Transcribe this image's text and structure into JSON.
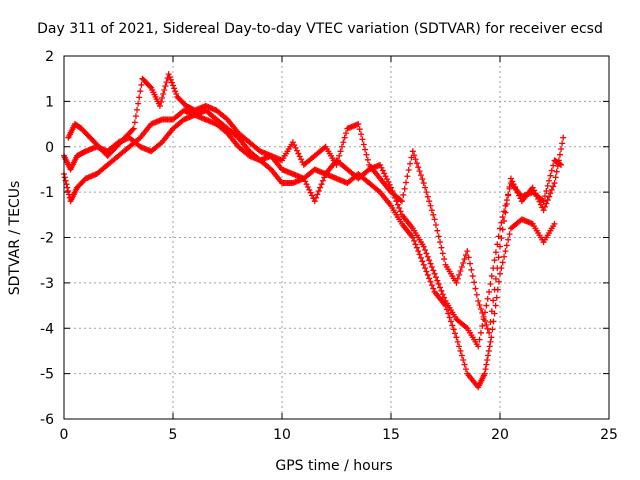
{
  "chart_data": {
    "type": "scatter",
    "title": "Day 311 of 2021, Sidereal Day-to-day VTEC variation (SDTVAR) for receiver ecsd",
    "xlabel": "GPS time / hours",
    "ylabel": "SDTVAR / TECUs",
    "xlim": [
      0,
      25
    ],
    "ylim": [
      -6,
      2
    ],
    "xticks": [
      "0",
      "5",
      "10",
      "15",
      "20",
      "25"
    ],
    "yticks": [
      "-6",
      "-5",
      "-4",
      "-3",
      "-2",
      "-1",
      "0",
      "1",
      "2"
    ],
    "grid": true,
    "marker": "+",
    "color": "#ff0000",
    "series": [
      {
        "x": [
          0.0,
          0.3,
          0.6,
          1.0,
          1.5,
          2.0,
          2.5,
          3.0,
          3.5,
          4.0,
          4.5,
          5.0,
          5.5,
          6.0,
          6.5,
          7.0,
          7.5,
          8.0,
          8.5,
          9.0,
          9.5,
          10.0,
          10.5,
          11.0,
          11.5,
          12.0,
          12.5,
          13.0,
          13.5,
          14.0,
          14.5,
          15.0,
          15.5,
          16.0,
          16.5,
          17.0,
          17.5,
          18.0,
          18.5,
          19.0,
          19.3,
          19.6,
          20.0,
          20.5,
          21.0,
          21.5,
          22.0,
          22.5
        ],
        "y": [
          -0.6,
          -1.2,
          -0.9,
          -0.7,
          -0.6,
          -0.4,
          -0.2,
          0.0,
          0.2,
          0.5,
          0.6,
          0.6,
          0.8,
          0.7,
          0.6,
          0.5,
          0.3,
          0.0,
          -0.2,
          -0.3,
          -0.5,
          -0.8,
          -0.8,
          -0.7,
          -0.5,
          -0.6,
          -0.7,
          -0.8,
          -0.6,
          -0.8,
          -1.0,
          -1.3,
          -1.7,
          -2.0,
          -2.6,
          -3.2,
          -3.5,
          -4.2,
          -5.0,
          -5.3,
          -5.0,
          -4.2,
          -2.8,
          -1.8,
          -1.6,
          -1.7,
          -2.1,
          -1.7
        ]
      },
      {
        "x": [
          0.0,
          0.3,
          0.6,
          1.0,
          1.5,
          2.0,
          2.5,
          3.0,
          3.5,
          4.0,
          4.5,
          5.0,
          5.5,
          6.0,
          6.5,
          7.0,
          7.5,
          8.0,
          8.5,
          9.0,
          9.5,
          10.0,
          10.5,
          11.0,
          11.5,
          12.0,
          12.5,
          13.0,
          13.5,
          14.0,
          14.5,
          15.0,
          15.5,
          16.0,
          16.5,
          17.0,
          17.5,
          18.0,
          18.5,
          19.0,
          19.5,
          20.0,
          20.5,
          21.0,
          21.5,
          22.0,
          22.5,
          22.8
        ],
        "y": [
          -0.2,
          -0.5,
          -0.2,
          -0.1,
          0.0,
          -0.1,
          0.1,
          0.2,
          0.0,
          -0.1,
          0.1,
          0.4,
          0.6,
          0.7,
          0.8,
          0.6,
          0.4,
          0.2,
          -0.1,
          -0.3,
          -0.2,
          -0.5,
          -0.6,
          -0.7,
          -1.2,
          -0.6,
          -0.3,
          -0.5,
          -0.7,
          -0.5,
          -0.4,
          -0.9,
          -1.5,
          -1.8,
          -2.2,
          -2.8,
          -3.4,
          -3.8,
          -4.0,
          -4.4,
          -3.2,
          -1.8,
          -0.8,
          -1.1,
          -1.0,
          -1.2,
          -0.3,
          -0.4
        ]
      },
      {
        "x": [
          0.2,
          0.5,
          0.8,
          1.2,
          1.6,
          2.0,
          2.4,
          2.8,
          3.2,
          3.6,
          4.0,
          4.4,
          4.8,
          5.2,
          5.6,
          6.0,
          6.5,
          7.0,
          7.5,
          8.0,
          8.5,
          9.0,
          9.5,
          10.0,
          10.5,
          11.0,
          11.5,
          12.0,
          12.5,
          13.0,
          13.5,
          14.0,
          14.5,
          15.0,
          15.5,
          16.0,
          16.5,
          17.0,
          17.5,
          18.0,
          18.5,
          19.0,
          19.5,
          20.0,
          20.5,
          21.0,
          21.5,
          22.0,
          22.5,
          22.9
        ],
        "y": [
          0.2,
          0.5,
          0.4,
          0.2,
          0.0,
          -0.2,
          0.0,
          0.2,
          0.4,
          1.5,
          1.3,
          0.9,
          1.6,
          1.1,
          0.9,
          0.8,
          0.9,
          0.8,
          0.6,
          0.3,
          0.1,
          -0.1,
          -0.2,
          -0.3,
          0.1,
          -0.4,
          -0.2,
          0.0,
          -0.4,
          0.4,
          0.5,
          -0.4,
          -0.7,
          -1.0,
          -1.2,
          -0.1,
          -0.8,
          -1.6,
          -2.6,
          -3.0,
          -2.3,
          -3.4,
          -4.1,
          -2.2,
          -0.7,
          -1.2,
          -0.9,
          -1.4,
          -0.8,
          0.2
        ]
      }
    ]
  }
}
